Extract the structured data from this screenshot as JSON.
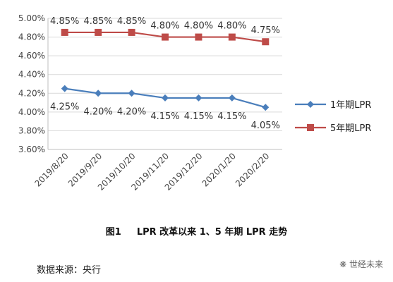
{
  "chart_data": {
    "type": "line",
    "categories": [
      "2019/8/20",
      "2019/9/20",
      "2019/10/20",
      "2019/11/20",
      "2019/12/20",
      "2020/1/20",
      "2020/2/20"
    ],
    "series": [
      {
        "name": "1年期LPR",
        "values": [
          4.25,
          4.2,
          4.2,
          4.15,
          4.15,
          4.15,
          4.05
        ],
        "labels": [
          "4.25%",
          "4.20%",
          "4.20%",
          "4.15%",
          "4.15%",
          "4.15%",
          "4.05%"
        ],
        "color": "#4a7ebb",
        "marker": "diamond"
      },
      {
        "name": "5年期LPR",
        "values": [
          4.85,
          4.85,
          4.85,
          4.8,
          4.8,
          4.8,
          4.75
        ],
        "labels": [
          "4.85%",
          "4.85%",
          "4.85%",
          "4.80%",
          "4.80%",
          "4.80%",
          "4.75%"
        ],
        "color": "#be4b48",
        "marker": "square"
      }
    ],
    "y_ticks": [
      "3.60%",
      "3.80%",
      "4.00%",
      "4.20%",
      "4.40%",
      "4.60%",
      "4.80%",
      "5.00%"
    ],
    "ylim": [
      3.6,
      5.0
    ],
    "grid": true,
    "legend_position": "right"
  },
  "caption": {
    "figure": "图1",
    "text": "LPR 改革以来 1、5 年期 LPR 走势"
  },
  "source": "数据来源：央行",
  "watermark": "世经未来"
}
